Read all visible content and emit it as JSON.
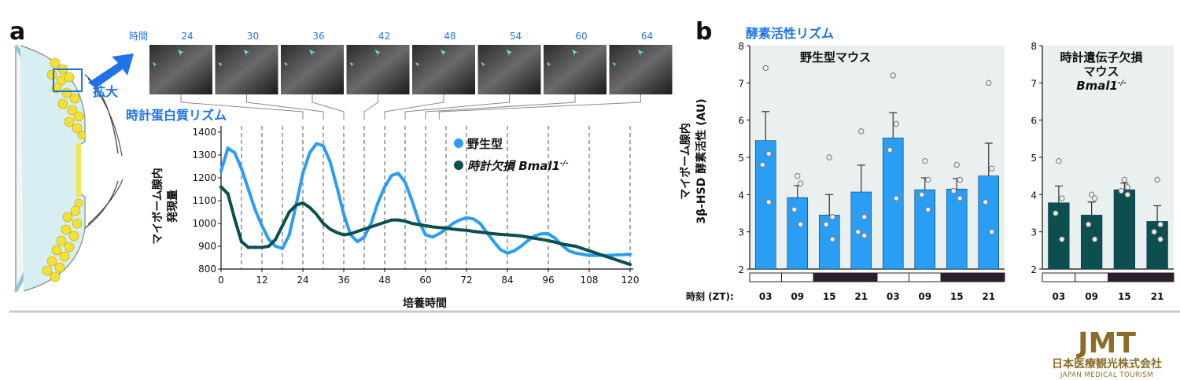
{
  "panel_a": {
    "letter": "a",
    "expand_label": "拡大",
    "time_header": "時間",
    "time_points": [
      "24",
      "30",
      "36",
      "42",
      "48",
      "54",
      "60",
      "64"
    ],
    "section_title": "時計蛋白質リズム",
    "ylabel_line1": "マイボーム腺内",
    "ylabel_line2": "発現量",
    "xlabel": "培養時間"
  },
  "panel_b": {
    "letter": "b",
    "section_title": "酵素活性リズム",
    "ylabel_line1": "マイボーム腺内",
    "ylabel_line2": "3β-HSD 酵素活性 (AU)",
    "time_row_label": "時刻 (ZT):",
    "wt_title": "野生型マウス",
    "ko_title_line1": "時計遺伝子欠損",
    "ko_title_line2": "マウス",
    "ko_title_line3": "Bmal1",
    "ko_title_sup": "-/-"
  },
  "logo": {
    "brand": "JMT",
    "name_jp": "日本医療観光株式会社",
    "name_en": "JAPAN MEDICAL TOURISM"
  },
  "colors": {
    "wildtype": "#2a9df4",
    "knockout": "#0d4f4f",
    "accent_blue": "#1e73e8",
    "plot_bg": "#e9f0ef",
    "logo_gold": "#8a6d2b"
  },
  "chart_data": [
    {
      "type": "line",
      "x": [
        0,
        2,
        4,
        6,
        8,
        10,
        12,
        14,
        16,
        18,
        20,
        22,
        24,
        26,
        28,
        30,
        32,
        34,
        36,
        38,
        40,
        42,
        44,
        46,
        48,
        50,
        52,
        54,
        56,
        58,
        60,
        62,
        64,
        66,
        68,
        70,
        72,
        74,
        76,
        78,
        80,
        82,
        84,
        86,
        88,
        90,
        92,
        94,
        96,
        98,
        100,
        102,
        104,
        106,
        108,
        110,
        112,
        114,
        116,
        118,
        120
      ],
      "xlim": [
        0,
        120
      ],
      "ylim": [
        800,
        1400
      ],
      "xticks": [
        0,
        12,
        24,
        36,
        48,
        60,
        72,
        84,
        96,
        108,
        120
      ],
      "yticks": [
        800,
        900,
        1000,
        1100,
        1200,
        1300,
        1400
      ],
      "vlines": [
        6,
        12,
        18,
        24,
        30,
        36,
        42,
        48,
        54,
        60,
        66,
        72,
        84,
        96,
        108,
        120
      ],
      "series": [
        {
          "name": "野生型",
          "values": [
            1230,
            1330,
            1310,
            1240,
            1150,
            1060,
            990,
            930,
            900,
            890,
            950,
            1080,
            1220,
            1310,
            1350,
            1340,
            1270,
            1160,
            1040,
            950,
            920,
            940,
            1000,
            1090,
            1160,
            1210,
            1220,
            1180,
            1100,
            1010,
            950,
            940,
            955,
            975,
            1000,
            1015,
            1025,
            1020,
            1000,
            960,
            920,
            885,
            870,
            880,
            900,
            925,
            945,
            955,
            955,
            935,
            905,
            880,
            870,
            865,
            860,
            860,
            860,
            860,
            862,
            863,
            865
          ]
        },
        {
          "name": "時計欠損 Bmal1",
          "name_sup": "-/-",
          "values": [
            1160,
            1130,
            1020,
            920,
            895,
            895,
            895,
            900,
            930,
            990,
            1050,
            1080,
            1090,
            1070,
            1040,
            1000,
            975,
            960,
            950,
            955,
            965,
            975,
            985,
            995,
            1005,
            1015,
            1015,
            1010,
            1000,
            995,
            990,
            985,
            982,
            980,
            975,
            972,
            970,
            965,
            962,
            958,
            955,
            952,
            950,
            948,
            945,
            940,
            935,
            930,
            925,
            918,
            910,
            905,
            900,
            890,
            880,
            870,
            860,
            850,
            840,
            830,
            820
          ]
        }
      ]
    },
    {
      "type": "bar",
      "title": "野生型マウス",
      "ylim": [
        2,
        8
      ],
      "yticks": [
        2,
        3,
        4,
        5,
        6,
        7,
        8
      ],
      "categories": [
        "03",
        "09",
        "15",
        "21",
        "03",
        "09",
        "15",
        "21"
      ],
      "values": [
        5.45,
        3.92,
        3.45,
        4.07,
        5.52,
        4.13,
        4.15,
        4.5
      ],
      "errors": [
        0.78,
        0.32,
        0.55,
        0.72,
        0.68,
        0.32,
        0.28,
        0.88
      ],
      "points": [
        [
          7.4,
          5.1,
          4.8,
          3.8
        ],
        [
          4.5,
          4.3,
          3.6,
          3.2
        ],
        [
          5.0,
          3.4,
          3.2,
          2.8
        ],
        [
          5.7,
          3.4,
          3.0,
          2.9
        ],
        [
          7.2,
          5.9,
          5.2,
          3.9
        ],
        [
          4.9,
          4.4,
          4.0,
          3.6
        ],
        [
          4.8,
          4.4,
          4.1,
          3.9
        ],
        [
          7.0,
          4.7,
          3.8,
          3.0
        ]
      ],
      "light_dark": [
        "light",
        "light",
        "dark",
        "dark",
        "light",
        "light",
        "dark",
        "dark"
      ]
    },
    {
      "type": "bar",
      "title": "時計遺伝子欠損マウス Bmal1-/-",
      "ylim": [
        2,
        8
      ],
      "yticks": [
        2,
        3,
        4,
        5,
        6,
        7,
        8
      ],
      "categories": [
        "03",
        "09",
        "15",
        "21"
      ],
      "values": [
        3.78,
        3.45,
        4.13,
        3.28
      ],
      "errors": [
        0.45,
        0.35,
        0.18,
        0.42
      ],
      "points": [
        [
          4.9,
          3.9,
          3.5,
          2.8
        ],
        [
          4.0,
          3.9,
          3.2,
          2.8
        ],
        [
          4.4,
          4.2,
          4.1,
          4.0
        ],
        [
          4.4,
          3.2,
          3.0,
          2.8
        ]
      ],
      "light_dark": [
        "light",
        "light",
        "dark",
        "dark"
      ]
    }
  ]
}
